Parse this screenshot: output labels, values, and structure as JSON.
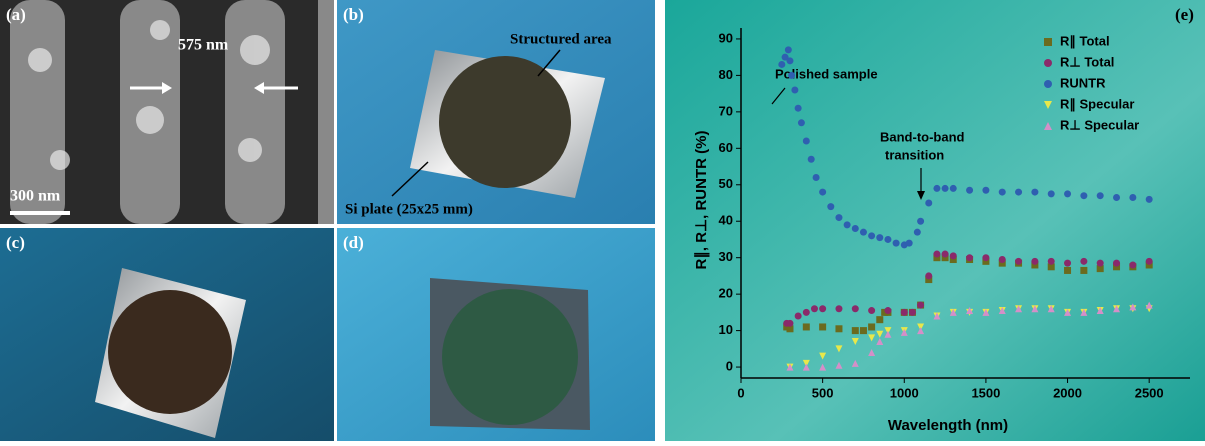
{
  "panels": {
    "a": {
      "label": "(a)",
      "period": "575 nm",
      "scale": "300 nm"
    },
    "b": {
      "label": "(b)",
      "area": "Structured area",
      "plate": "Si plate (25x25 mm)"
    },
    "c": {
      "label": "(c)"
    },
    "d": {
      "label": "(d)"
    }
  },
  "chart_data": {
    "type": "scatter",
    "panel_label": "(e)",
    "x_label": "Wavelength (nm)",
    "y_label": "R∥, R⊥, RUNTR (%)",
    "annotations": [
      "Polished sample",
      "Band-to-band",
      "transition"
    ],
    "xlim": [
      0,
      2750
    ],
    "ylim": [
      -3,
      93
    ],
    "xticks": [
      0,
      500,
      1000,
      1500,
      2000,
      2500
    ],
    "yticks": [
      0,
      10,
      20,
      30,
      40,
      50,
      60,
      70,
      80,
      90
    ],
    "series": [
      {
        "name": "R∥ Total",
        "color": "#6b6b1e",
        "marker": "square",
        "x": [
          280,
          300,
          400,
          500,
          600,
          700,
          750,
          800,
          850,
          880,
          900,
          1000,
          1050,
          1100,
          1150,
          1200,
          1250,
          1300,
          1400,
          1500,
          1600,
          1700,
          1800,
          1900,
          2000,
          2100,
          2200,
          2300,
          2400,
          2500
        ],
        "values": [
          11,
          10.5,
          11,
          11,
          10.5,
          10,
          10,
          11,
          13,
          15,
          15,
          15,
          15,
          17,
          24,
          30,
          30,
          29.5,
          29.5,
          29,
          28.5,
          28.5,
          28,
          27.5,
          26.5,
          26.5,
          27,
          27.5,
          27.5,
          28
        ]
      },
      {
        "name": "R⊥ Total",
        "color": "#8a2a6a",
        "marker": "circle",
        "x": [
          280,
          300,
          350,
          400,
          450,
          500,
          600,
          700,
          800,
          900,
          1000,
          1050,
          1100,
          1150,
          1200,
          1250,
          1300,
          1400,
          1500,
          1600,
          1700,
          1800,
          1900,
          2000,
          2100,
          2200,
          2300,
          2400,
          2500
        ],
        "values": [
          12,
          12,
          14,
          15,
          16,
          16,
          16,
          16,
          15.5,
          15.5,
          15,
          15,
          17,
          25,
          31,
          31,
          30.5,
          30,
          30,
          29.5,
          29,
          29,
          29,
          28.5,
          29,
          28.5,
          28.5,
          28,
          29
        ]
      },
      {
        "name": "RUNTR",
        "color": "#2f5fb0",
        "marker": "circle",
        "x": [
          250,
          270,
          290,
          300,
          310,
          330,
          350,
          370,
          400,
          430,
          460,
          500,
          550,
          600,
          650,
          700,
          750,
          800,
          850,
          900,
          950,
          1000,
          1030,
          1080,
          1100,
          1150,
          1200,
          1250,
          1300,
          1400,
          1500,
          1600,
          1700,
          1800,
          1900,
          2000,
          2100,
          2200,
          2300,
          2400,
          2500
        ],
        "values": [
          83,
          85,
          87,
          84,
          80,
          76,
          71,
          67,
          62,
          57,
          52,
          48,
          44,
          41,
          39,
          38,
          37,
          36,
          35.5,
          35,
          34,
          33.5,
          34,
          37,
          40,
          45,
          49,
          49,
          49,
          48.5,
          48.5,
          48,
          48,
          48,
          47.5,
          47.5,
          47,
          47,
          46.5,
          46.5,
          46
        ]
      },
      {
        "name": "R∥ Specular",
        "color": "#e8e84a",
        "marker": "tri-down",
        "x": [
          300,
          400,
          500,
          600,
          700,
          800,
          850,
          900,
          1000,
          1100,
          1200,
          1300,
          1400,
          1500,
          1600,
          1700,
          1800,
          1900,
          2000,
          2100,
          2200,
          2300,
          2400,
          2500
        ],
        "values": [
          0,
          1,
          3,
          5,
          7,
          8,
          9,
          10,
          10,
          11,
          14,
          15,
          15,
          15,
          15.5,
          16,
          16,
          16,
          15,
          15,
          15.5,
          16,
          16,
          16
        ]
      },
      {
        "name": "R⊥ Specular",
        "color": "#d48fc8",
        "marker": "tri-up",
        "x": [
          300,
          400,
          500,
          600,
          700,
          800,
          850,
          900,
          1000,
          1100,
          1200,
          1300,
          1400,
          1500,
          1600,
          1700,
          1800,
          1900,
          2000,
          2100,
          2200,
          2300,
          2400,
          2500
        ],
        "values": [
          0,
          0,
          0,
          0.5,
          1,
          4,
          7,
          9,
          9.5,
          10,
          14,
          15,
          15.5,
          15,
          15.5,
          16,
          16,
          16,
          15,
          15,
          15.5,
          16,
          16.5,
          17
        ]
      }
    ]
  }
}
